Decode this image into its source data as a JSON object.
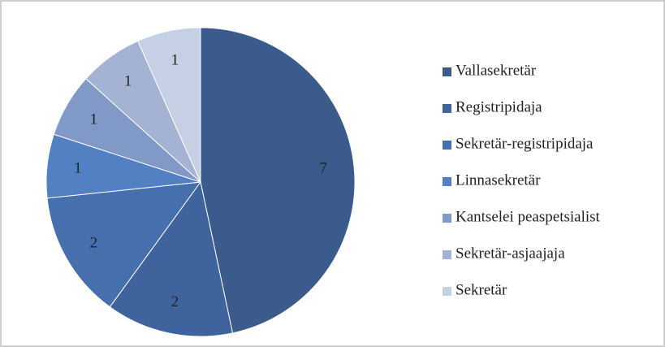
{
  "chart_data": {
    "type": "pie",
    "categories": [
      "Vallasekretär",
      "Registripidaja",
      "Sekretär-registripidaja",
      "Linnasekretär",
      "Kantselei peaspetsialist",
      "Sekretär-asjaajaja",
      "Sekretär"
    ],
    "values": [
      7,
      2,
      2,
      1,
      1,
      1,
      1
    ],
    "colors": [
      "#3b5b8c",
      "#3f639c",
      "#466fae",
      "#5280c2",
      "#8099c6",
      "#a4b3d3",
      "#c6d0e4"
    ],
    "legend": "right"
  }
}
